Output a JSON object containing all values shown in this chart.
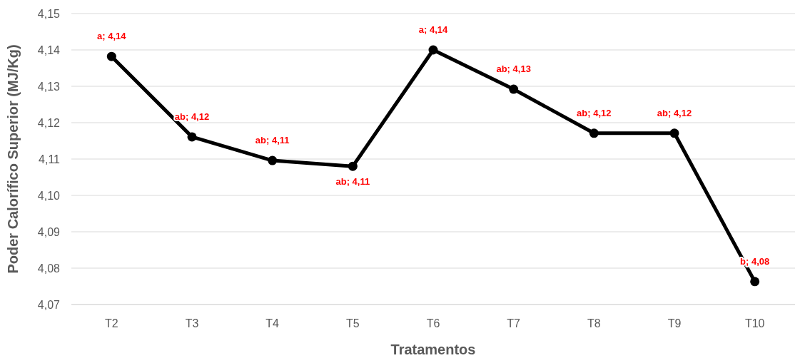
{
  "chart_data": {
    "type": "line",
    "xlabel": "Tratamentos",
    "ylabel": "Poder Calorífico Superior (MJ/Kg)",
    "categories": [
      "T2",
      "T3",
      "T4",
      "T5",
      "T6",
      "T7",
      "T8",
      "T9",
      "T10"
    ],
    "series": [
      {
        "color": "#000000",
        "values": [
          4.1382,
          4.1161,
          4.1096,
          4.108,
          4.14,
          4.1292,
          4.1171,
          4.1171,
          4.0763
        ],
        "value_labels": [
          "a; 4,14",
          "ab; 4,12",
          "ab; 4,11",
          "ab; 4,11",
          "a; 4,14",
          "ab; 4,13",
          "ab; 4,12",
          "ab; 4,12",
          "b; 4,08"
        ]
      }
    ],
    "ylim": [
      4.07,
      4.15
    ],
    "yticks": [
      {
        "value": 4.07,
        "label": "4,07"
      },
      {
        "value": 4.08,
        "label": "4,08"
      },
      {
        "value": 4.09,
        "label": "4,09"
      },
      {
        "value": 4.1,
        "label": "4,10"
      },
      {
        "value": 4.11,
        "label": "4,11"
      },
      {
        "value": 4.12,
        "label": "4,12"
      },
      {
        "value": 4.13,
        "label": "4,13"
      },
      {
        "value": 4.14,
        "label": "4,14"
      },
      {
        "value": 4.15,
        "label": "4,15"
      }
    ],
    "grid": "y",
    "marker": "circle",
    "line_style": "solid"
  }
}
